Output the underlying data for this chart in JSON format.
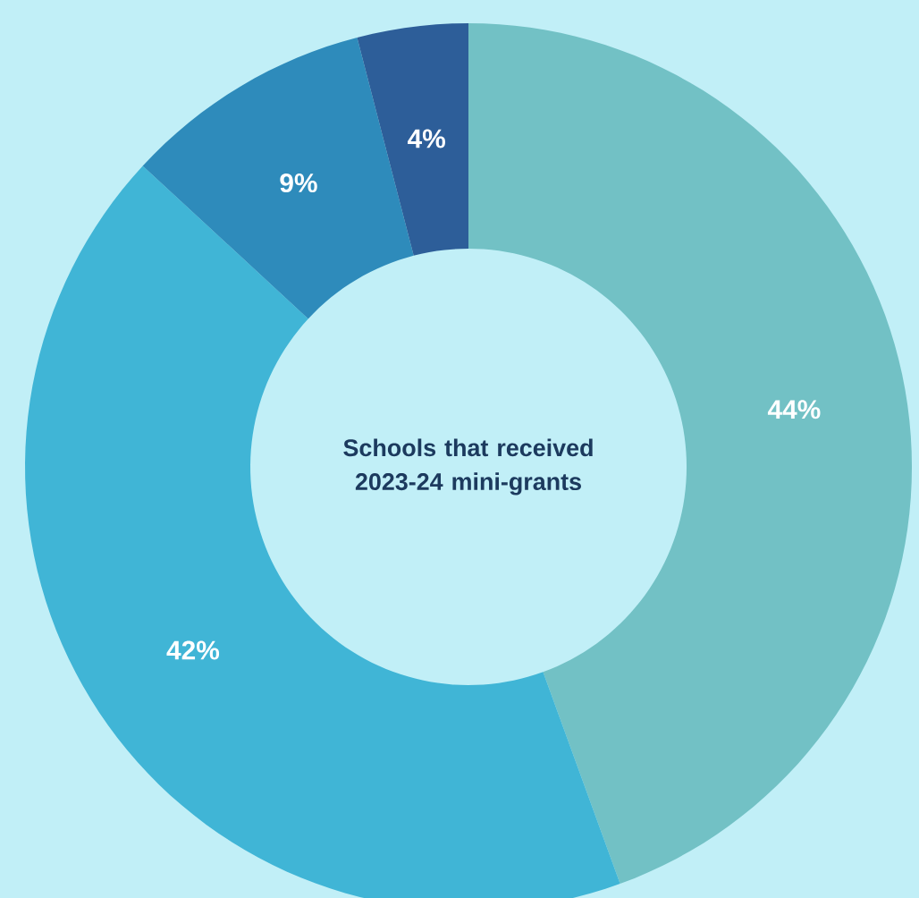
{
  "chart_data": {
    "type": "donut",
    "title": "Schools that received 2023-24 mini-grants",
    "categories": [
      null,
      null,
      null,
      null
    ],
    "values": [
      44,
      42,
      9,
      4
    ],
    "value_labels": [
      "44%",
      "42%",
      "9%",
      "4%"
    ],
    "colors": [
      "#72c1c5",
      "#40b5d6",
      "#2e8bbb",
      "#2d5e99"
    ]
  }
}
